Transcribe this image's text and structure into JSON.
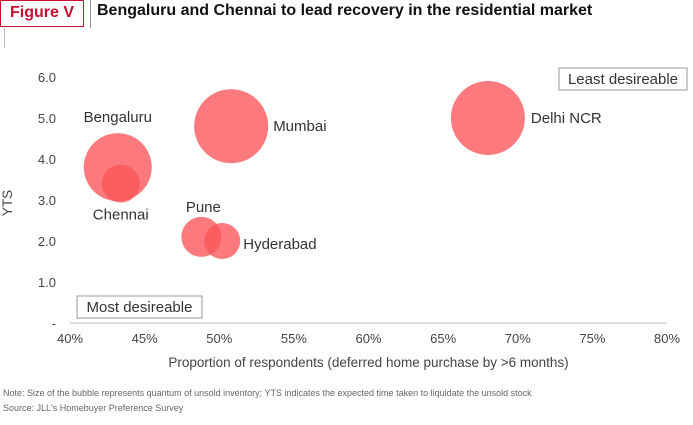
{
  "figure_label": "Figure V",
  "title": "Bengaluru and Chennai to lead recovery in the residential market",
  "note": "Note: Size of the bubble represents quantum of unsold inventory; YTS indicates the expected time taken to liquidate the unsold stock",
  "source": "Source: JLL's Homebuyer Preference Survey",
  "colors": {
    "bubble": "#fb5458",
    "accent": "#c8102e"
  },
  "chart_data": {
    "type": "scatter",
    "title": "Bengaluru and Chennai to lead recovery in the residential market",
    "xlabel": "Proportion of respondents (deferred home purchase by >6 months)",
    "ylabel": "YTS",
    "xlim": [
      40,
      80
    ],
    "ylim": [
      0,
      6
    ],
    "x_ticks": [
      "40%",
      "45%",
      "50%",
      "55%",
      "60%",
      "65%",
      "70%",
      "75%",
      "80%"
    ],
    "y_ticks": [
      "-",
      "1.0",
      "2.0",
      "3.0",
      "4.0",
      "5.0",
      "6.0"
    ],
    "grid": false,
    "quadrant_labels": {
      "top_right": "Least desireable",
      "bottom_left": "Most desireable"
    },
    "points": [
      {
        "label": "Bengaluru",
        "x": 43.2,
        "y": 3.8,
        "size": 34
      },
      {
        "label": "Chennai",
        "x": 43.4,
        "y": 3.4,
        "size": 19
      },
      {
        "label": "Mumbai",
        "x": 50.8,
        "y": 4.8,
        "size": 37
      },
      {
        "label": "Delhi NCR",
        "x": 68.0,
        "y": 5.0,
        "size": 37
      },
      {
        "label": "Pune",
        "x": 48.8,
        "y": 2.1,
        "size": 20
      },
      {
        "label": "Hyderabad",
        "x": 50.2,
        "y": 2.0,
        "size": 18
      }
    ]
  }
}
